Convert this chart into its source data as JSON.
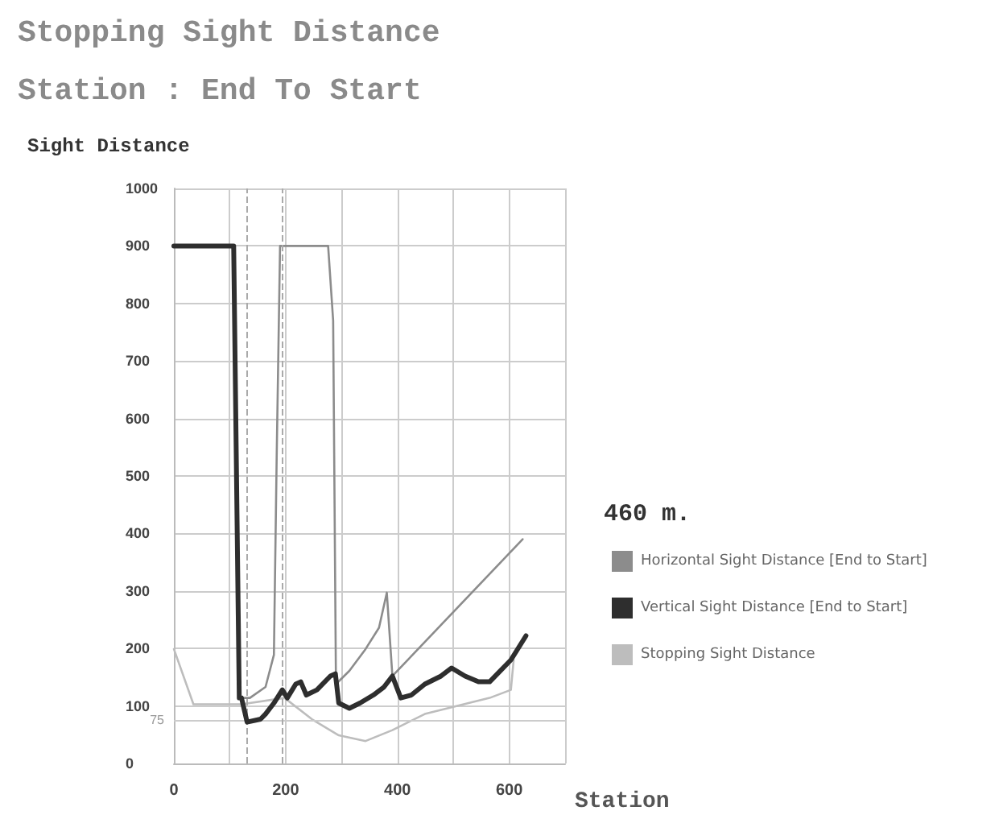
{
  "chart_data": {
    "type": "line",
    "title": "Stopping Sight Distance",
    "subtitle": "Station : End To Start",
    "ylabel": "Sight Distance",
    "xlabel": "Station",
    "annotations": [
      "460 m."
    ],
    "xlim": [
      0,
      700
    ],
    "xticks": [
      0,
      {
        "value": 100,
        "label": null
      },
      200,
      {
        "value": 300,
        "label": null
      },
      400,
      {
        "value": 500,
        "label": null
      },
      600,
      {
        "value": 700,
        "label": null
      }
    ],
    "ylim": [
      0,
      1000
    ],
    "yticks": [
      0,
      100,
      200,
      300,
      400,
      500,
      600,
      700,
      800,
      900,
      1000
    ],
    "grid": true,
    "legend": "right",
    "marker": "none",
    "line_style": "solid",
    "ref_lines": [
      {
        "axis": "y",
        "value": 75,
        "label": "75",
        "color": "#cccccc"
      },
      {
        "axis": "x",
        "value": 131,
        "color": "#aaaaaa",
        "line_style": "dashed"
      },
      {
        "axis": "x",
        "value": 194,
        "color": "#aaaaaa",
        "line_style": "dashed"
      }
    ],
    "series": [
      {
        "name": "Horizontal Sight Distance [End to Start]",
        "color": "#8c8c8c",
        "x": [
          0,
          107,
          117,
          121,
          136,
          164,
          179,
          184,
          190,
          276,
          285,
          290,
          314,
          343,
          367,
          381,
          391,
          624
        ],
        "values": [
          900,
          900,
          114,
          114,
          114,
          133,
          189,
          536,
          900,
          900,
          770,
          138,
          161,
          199,
          236,
          297,
          152,
          390
        ]
      },
      {
        "name": "Vertical Sight Distance [End to Start]",
        "color": "#2e2e2e",
        "x": [
          0,
          107,
          117,
          121,
          131,
          155,
          164,
          179,
          194,
          203,
          218,
          227,
          237,
          256,
          280,
          289,
          295,
          314,
          333,
          357,
          376,
          391,
          406,
          425,
          449,
          478,
          497,
          521,
          545,
          565,
          579,
          603,
          630
        ],
        "values": [
          900,
          900,
          114,
          114,
          72,
          77,
          86,
          105,
          128,
          114,
          138,
          142,
          119,
          128,
          152,
          156,
          105,
          96,
          105,
          119,
          133,
          152,
          114,
          119,
          138,
          152,
          166,
          152,
          142,
          142,
          156,
          180,
          222
        ]
      },
      {
        "name": "Stopping Sight Distance",
        "color": "#bdbdbd",
        "x": [
          0,
          35,
          121,
          198,
          247,
          295,
          343,
          391,
          449,
          507,
          565,
          603,
          608
        ],
        "values": [
          199,
          103,
          103,
          114,
          77,
          49,
          39,
          58,
          86,
          100,
          114,
          128,
          180
        ]
      }
    ]
  }
}
